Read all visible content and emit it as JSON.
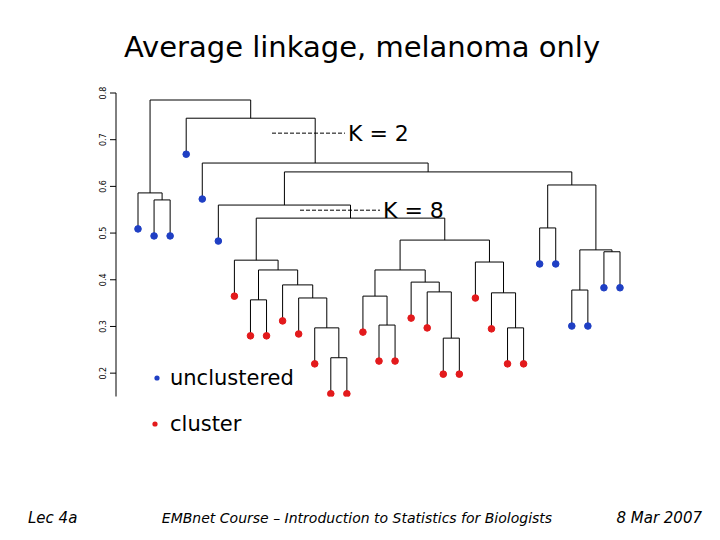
{
  "chart_data": {
    "type": "dendrogram",
    "title": "Average linkage, melanoma only",
    "ylim": [
      0.15,
      0.8
    ],
    "yticks": [
      0.2,
      0.3,
      0.4,
      0.5,
      0.6,
      0.7,
      0.8
    ],
    "series": [
      {
        "name": "unclustered",
        "color": "#1f3fc4"
      },
      {
        "name": "cluster",
        "color": "#e31a1c"
      }
    ],
    "annotations": [
      {
        "text": "K = 2",
        "y": 0.714
      },
      {
        "text": "K = 8",
        "y": 0.549
      }
    ],
    "tree": {
      "height": 0.785,
      "children": [
        {
          "height": 0.586,
          "children": [
            {
              "group": "unclustered"
            },
            {
              "height": 0.571,
              "children": [
                {
                  "group": "unclustered"
                },
                {
                  "group": "unclustered"
                }
              ]
            }
          ]
        },
        {
          "height": 0.746,
          "children": [
            {
              "group": "unclustered"
            },
            {
              "height": 0.65,
              "children": [
                {
                  "group": "unclustered"
                },
                {
                  "height": 0.631,
                  "children": [
                    {
                      "height": 0.56,
                      "children": [
                        {
                          "group": "unclustered"
                        },
                        {
                          "height": 0.532,
                          "children": [
                            {
                              "height": 0.442,
                              "children": [
                                {
                                  "group": "cluster"
                                },
                                {
                                  "height": 0.421,
                                  "children": [
                                    {
                                      "height": 0.357,
                                      "children": [
                                        {
                                          "group": "cluster"
                                        },
                                        {
                                          "group": "cluster"
                                        }
                                      ]
                                    },
                                    {
                                      "height": 0.389,
                                      "children": [
                                        {
                                          "group": "cluster"
                                        },
                                        {
                                          "height": 0.361,
                                          "children": [
                                            {
                                              "group": "cluster"
                                            },
                                            {
                                              "height": 0.297,
                                              "children": [
                                                {
                                                  "group": "cluster"
                                                },
                                                {
                                                  "height": 0.233,
                                                  "children": [
                                                    {
                                                      "group": "cluster"
                                                    },
                                                    {
                                                      "group": "cluster"
                                                    }
                                                  ]
                                                }
                                              ]
                                            }
                                          ]
                                        }
                                      ]
                                    }
                                  ]
                                }
                              ]
                            },
                            {
                              "height": 0.485,
                              "children": [
                                {
                                  "height": 0.421,
                                  "children": [
                                    {
                                      "height": 0.365,
                                      "children": [
                                        {
                                          "group": "cluster"
                                        },
                                        {
                                          "height": 0.303,
                                          "children": [
                                            {
                                              "group": "cluster"
                                            },
                                            {
                                              "group": "cluster"
                                            }
                                          ]
                                        }
                                      ]
                                    },
                                    {
                                      "height": 0.395,
                                      "children": [
                                        {
                                          "group": "cluster"
                                        },
                                        {
                                          "height": 0.374,
                                          "children": [
                                            {
                                              "group": "cluster"
                                            },
                                            {
                                              "height": 0.275,
                                              "children": [
                                                {
                                                  "group": "cluster"
                                                },
                                                {
                                                  "group": "cluster"
                                                }
                                              ]
                                            }
                                          ]
                                        }
                                      ]
                                    }
                                  ]
                                },
                                {
                                  "height": 0.438,
                                  "children": [
                                    {
                                      "group": "cluster"
                                    },
                                    {
                                      "height": 0.372,
                                      "children": [
                                        {
                                          "group": "cluster"
                                        },
                                        {
                                          "height": 0.297,
                                          "children": [
                                            {
                                              "group": "cluster"
                                            },
                                            {
                                              "group": "cluster"
                                            }
                                          ]
                                        }
                                      ]
                                    }
                                  ]
                                }
                              ]
                            }
                          ]
                        }
                      ]
                    },
                    {
                      "height": 0.603,
                      "children": [
                        {
                          "height": 0.511,
                          "children": [
                            {
                              "group": "unclustered"
                            },
                            {
                              "group": "unclustered"
                            }
                          ]
                        },
                        {
                          "height": 0.464,
                          "children": [
                            {
                              "height": 0.378,
                              "children": [
                                {
                                  "group": "unclustered"
                                },
                                {
                                  "group": "unclustered"
                                }
                              ]
                            },
                            {
                              "height": 0.46,
                              "children": [
                                {
                                  "group": "unclustered"
                                },
                                {
                                  "group": "unclustered"
                                }
                              ]
                            }
                          ]
                        }
                      ]
                    }
                  ]
                }
              ]
            }
          ]
        }
      ]
    }
  },
  "footer": {
    "left": "Lec 4a",
    "center": "EMBnet Course – Introduction to Statistics for Biologists",
    "right": "8 Mar 2007"
  }
}
